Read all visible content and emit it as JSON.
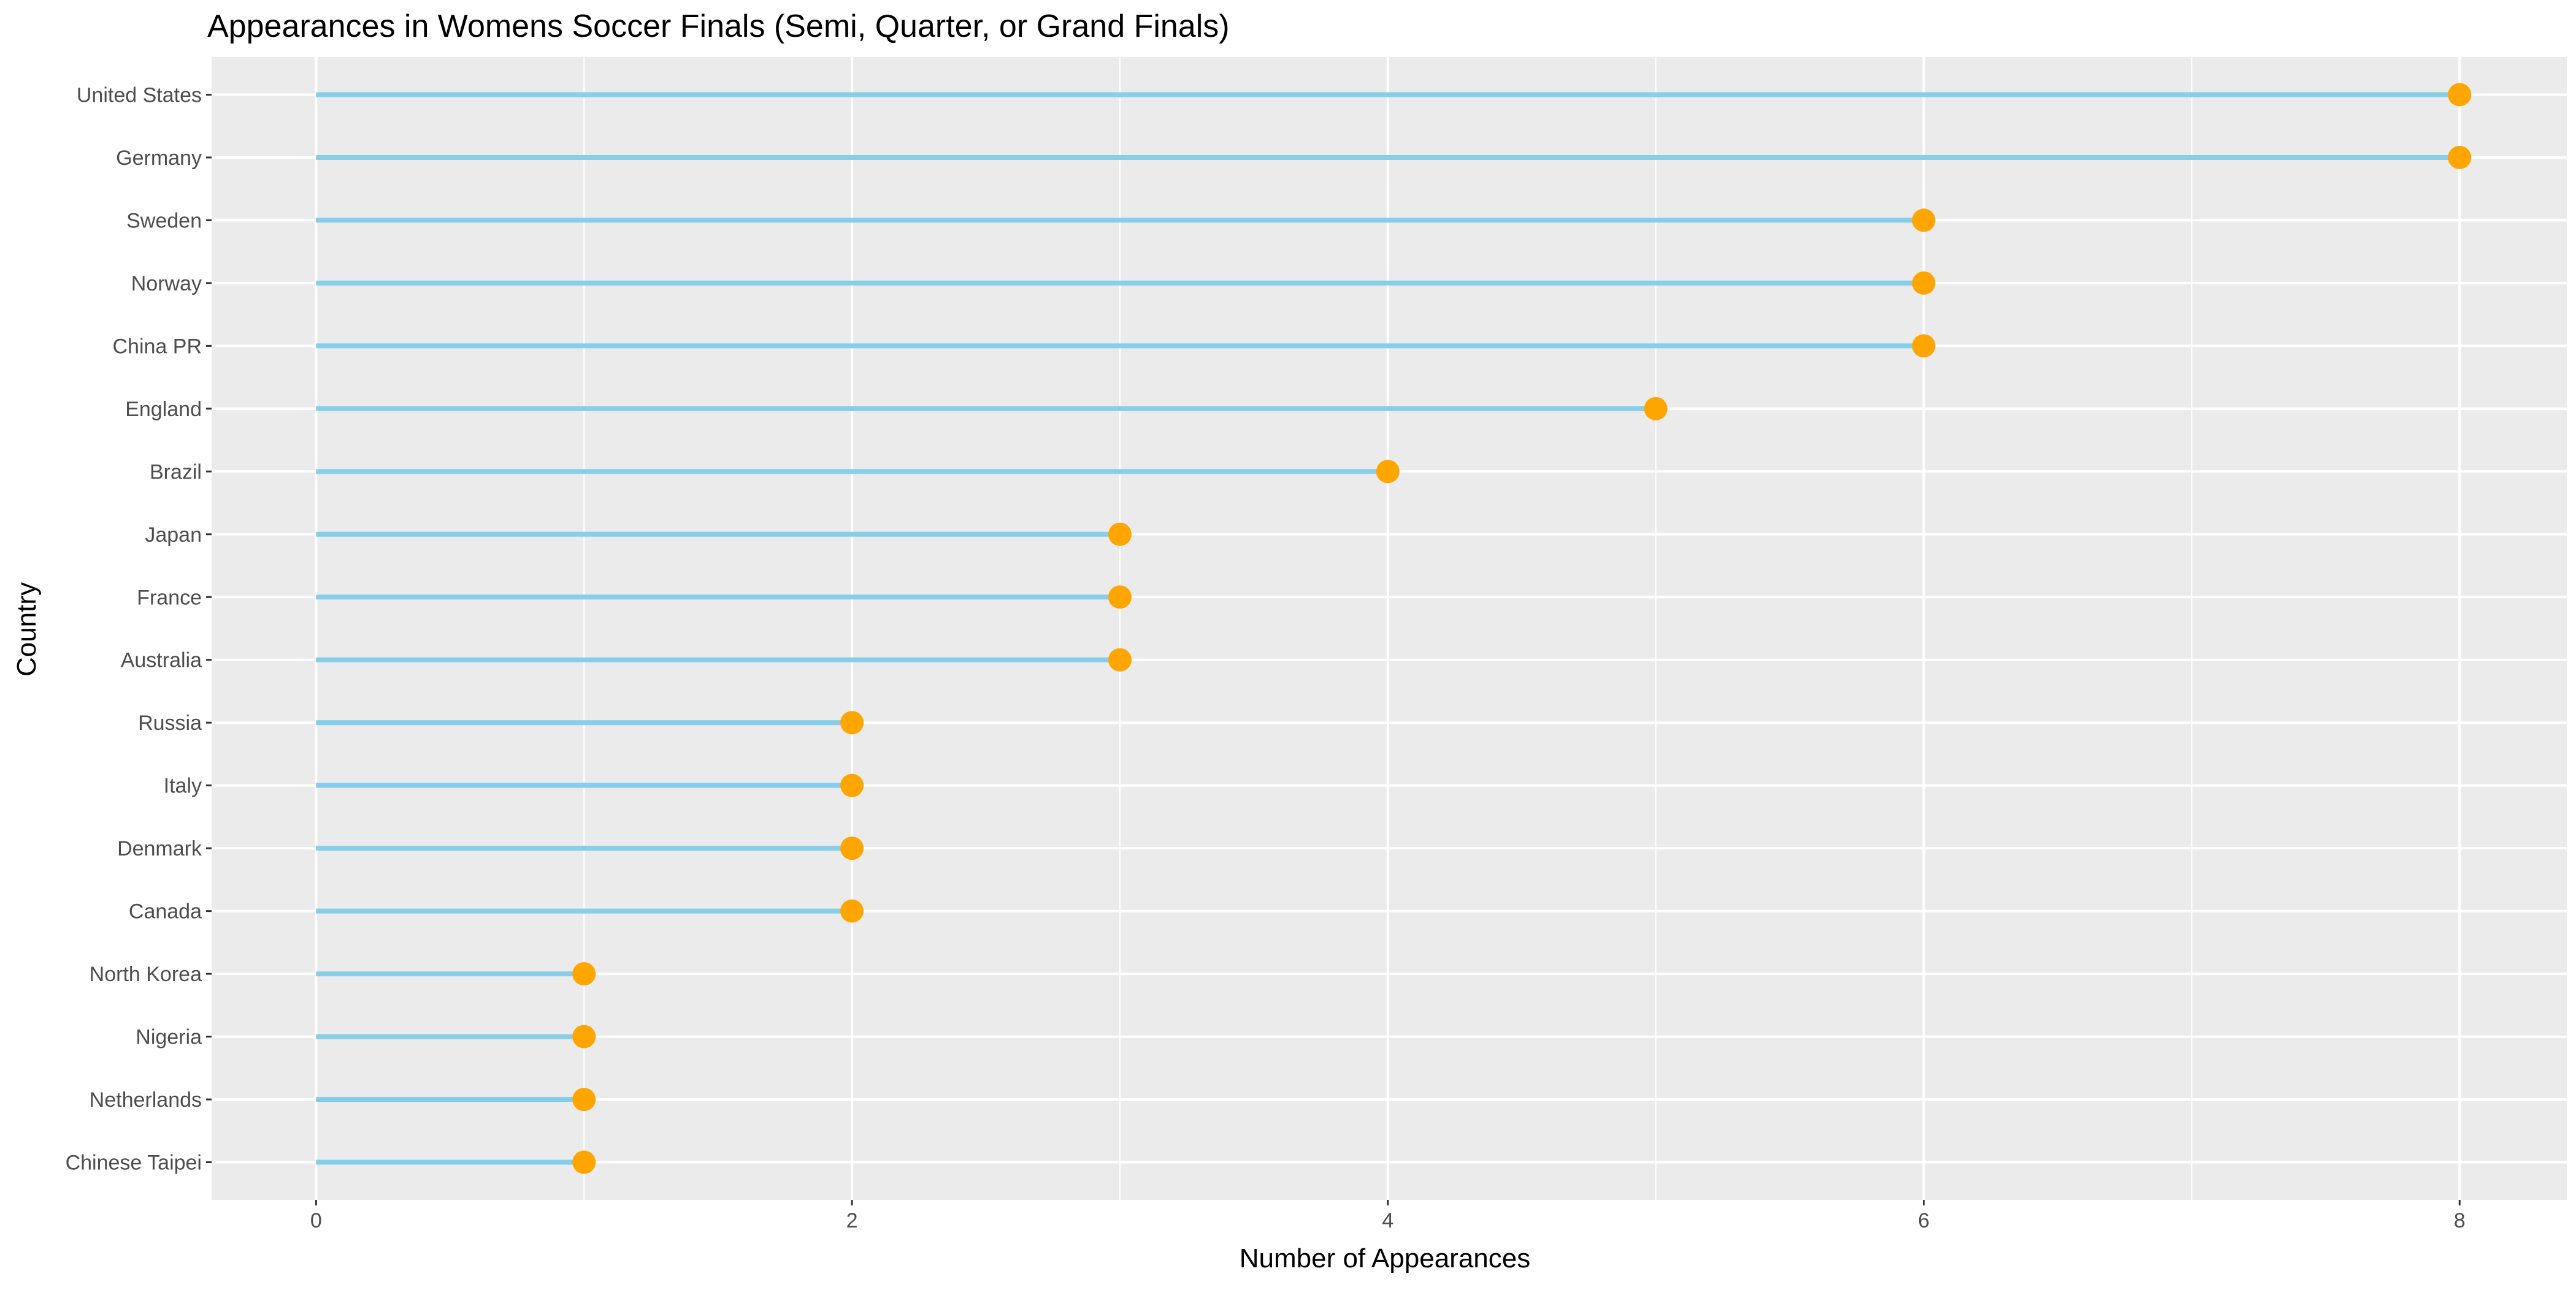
{
  "chart_data": {
    "type": "lollipop",
    "title": "Appearances in Womens Soccer Finals (Semi, Quarter, or Grand Finals)",
    "xlabel": "Number of Appearances",
    "ylabel": "Country",
    "xlim": [
      -0.39,
      8.4
    ],
    "xticks": [
      0,
      2,
      4,
      6,
      8
    ],
    "grid": true,
    "categories": [
      "United States",
      "Germany",
      "Sweden",
      "Norway",
      "China PR",
      "England",
      "Brazil",
      "Japan",
      "France",
      "Australia",
      "Russia",
      "Italy",
      "Denmark",
      "Canada",
      "North Korea",
      "Nigeria",
      "Netherlands",
      "Chinese Taipei"
    ],
    "values": [
      8,
      8,
      6,
      6,
      6,
      5,
      4,
      3,
      3,
      3,
      2,
      2,
      2,
      2,
      1,
      1,
      1,
      1
    ],
    "colors": {
      "stem": "#87CEEB",
      "point": "#FFA500",
      "panel": "#EBEBEB",
      "grid": "#FFFFFF",
      "axis_text": "#4D4D4D",
      "title_text": "#000000"
    }
  }
}
